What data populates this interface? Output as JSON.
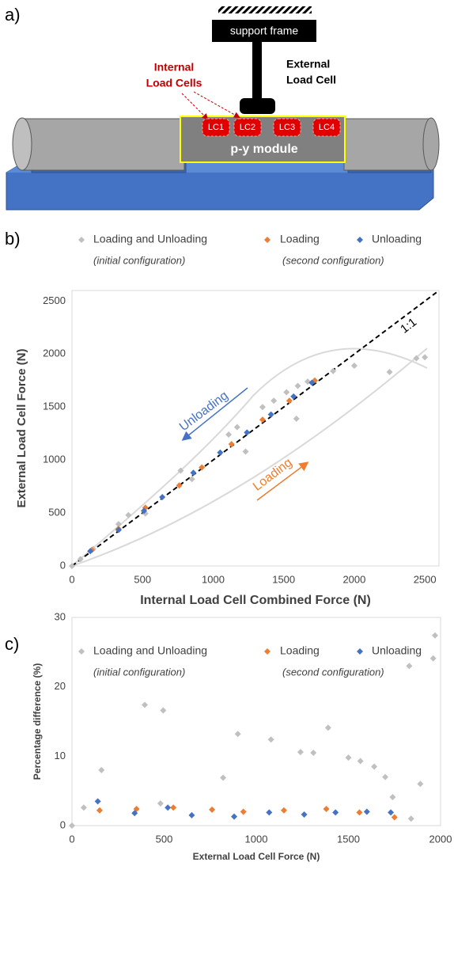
{
  "diagram": {
    "label": "a)",
    "support_frame": "support frame",
    "external_load_cell": [
      "External",
      "Load Cell"
    ],
    "internal_load_cells": [
      "Internal",
      "Load Cells"
    ],
    "load_cells": [
      "LC1",
      "LC2",
      "LC3",
      "LC4"
    ],
    "module": "p-y module"
  },
  "chart_data": [
    {
      "type": "scatter",
      "panel_label": "b)",
      "x_label": "Internal Load Cell Combined Force (N)",
      "y_label": "External Load Cell Force (N)",
      "xlim": [
        0,
        2600
      ],
      "ylim": [
        0,
        2600
      ],
      "xticks": [
        0,
        500,
        1000,
        1500,
        2000,
        2500
      ],
      "yticks": [
        0,
        500,
        1000,
        1500,
        2000,
        2500
      ],
      "grid": false,
      "reference_line": true,
      "annotations": [
        {
          "text": "Unloading",
          "color": "#4472c4"
        },
        {
          "text": "Loading",
          "color": "#ed7d31"
        },
        {
          "text": "1:1",
          "color": "#000000"
        }
      ],
      "series": [
        {
          "name": "Loading and Unloading",
          "note": "(initial configuration)",
          "color": "#c0c0c0",
          "x": [
            0,
            60,
            150,
            330,
            400,
            520,
            770,
            850,
            1110,
            1170,
            1230,
            1350,
            1430,
            1520,
            1590,
            1600,
            1670,
            1850,
            2000,
            2250,
            2440,
            2500
          ],
          "values": [
            0,
            64,
            160,
            395,
            480,
            495,
            900,
            820,
            1240,
            1310,
            1080,
            1500,
            1560,
            1640,
            1390,
            1700,
            1740,
            1840,
            1890,
            1830,
            1960,
            1970
          ]
        },
        {
          "name": "Loading",
          "note": "(second configuration)",
          "color": "#ed7d31",
          "x": [
            140,
            330,
            520,
            760,
            920,
            1130,
            1350,
            1540,
            1720
          ],
          "values": [
            150,
            350,
            550,
            760,
            930,
            1150,
            1380,
            1560,
            1750
          ]
        },
        {
          "name": "Unloading",
          "color": "#4472c4",
          "x": [
            130,
            330,
            510,
            640,
            860,
            1050,
            1240,
            1410,
            1570,
            1700
          ],
          "values": [
            140,
            340,
            520,
            650,
            880,
            1070,
            1260,
            1430,
            1600,
            1730
          ]
        }
      ]
    },
    {
      "type": "scatter",
      "panel_label": "c)",
      "x_label": "External Load Cell Force (N)",
      "y_label": "Percentage difference (%)",
      "xlim": [
        0,
        2000
      ],
      "ylim": [
        0,
        30
      ],
      "xticks": [
        0,
        500,
        1000,
        1500,
        2000
      ],
      "yticks": [
        0,
        10,
        20,
        30
      ],
      "grid": false,
      "series": [
        {
          "name": "Loading and Unloading",
          "note": "(initial configuration)",
          "color": "#c0c0c0",
          "x": [
            0,
            64,
            160,
            395,
            480,
            495,
            820,
            900,
            1080,
            1240,
            1310,
            1390,
            1500,
            1565,
            1640,
            1700,
            1740,
            1830,
            1840,
            1890,
            1960,
            1970
          ],
          "values": [
            0,
            2.6,
            8.0,
            17.4,
            3.2,
            16.6,
            6.9,
            13.2,
            12.4,
            10.6,
            10.5,
            14.1,
            9.8,
            9.3,
            8.5,
            7.0,
            4.1,
            23.0,
            1.0,
            6.0,
            24.1,
            27.4
          ]
        },
        {
          "name": "Loading",
          "note": "(second configuration)",
          "color": "#ed7d31",
          "x": [
            150,
            350,
            550,
            760,
            930,
            1150,
            1380,
            1560,
            1750
          ],
          "values": [
            2.2,
            2.4,
            2.6,
            2.3,
            2.0,
            2.2,
            2.4,
            1.9,
            1.2
          ]
        },
        {
          "name": "Unloading",
          "color": "#4472c4",
          "x": [
            140,
            340,
            520,
            650,
            880,
            1070,
            1260,
            1430,
            1600,
            1730
          ],
          "values": [
            3.5,
            1.8,
            2.6,
            1.5,
            1.3,
            1.9,
            1.6,
            1.9,
            2.0,
            1.9
          ]
        }
      ]
    }
  ]
}
